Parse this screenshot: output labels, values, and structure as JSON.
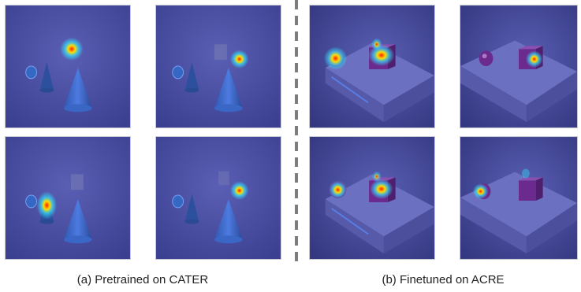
{
  "captions": {
    "left": "(a) Pretrained on CATER",
    "right": "(b) Finetuned on ACRE"
  },
  "colors": {
    "background_blue": "#4a4fa2",
    "heat_red": "#ff2a00",
    "heat_yellow": "#ffe600",
    "heat_cyan": "#34e0ff",
    "object_blue": "#3d68c8",
    "object_purple": "#7a2f9a"
  },
  "panels": [
    {
      "name": "cater-panel-top-left",
      "scene": "cater",
      "heat": "above-cone"
    },
    {
      "name": "cater-panel-top-right",
      "scene": "cater",
      "heat": "small-right-object"
    },
    {
      "name": "cater-panel-bottom-left",
      "scene": "cater",
      "heat": "small-cone"
    },
    {
      "name": "cater-panel-bottom-right",
      "scene": "cater",
      "heat": "small-right-object"
    },
    {
      "name": "acre-panel-top-left",
      "scene": "acre",
      "heat": "sphere-and-cube"
    },
    {
      "name": "acre-panel-top-right",
      "scene": "acre",
      "heat": "cube"
    },
    {
      "name": "acre-panel-bottom-left",
      "scene": "acre",
      "heat": "sphere-and-cube"
    },
    {
      "name": "acre-panel-bottom-right",
      "scene": "acre",
      "heat": "sphere"
    }
  ]
}
